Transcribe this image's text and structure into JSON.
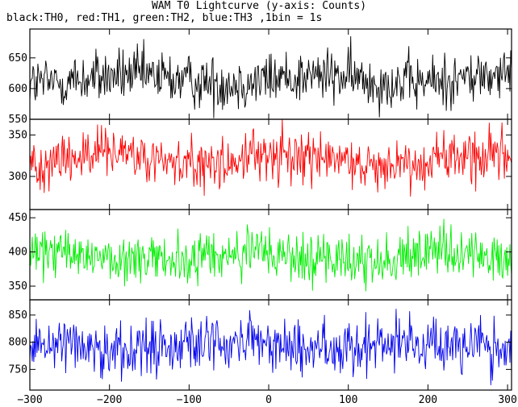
{
  "title": "WAM T0 Lightcurve (y-axis: Counts)",
  "subtitle": "black:TH0, red:TH1, green:TH2, blue:TH3 ,1bin = 1s",
  "chart_data": [
    {
      "type": "line",
      "series_color": "#000000",
      "xlim": [
        -300,
        305
      ],
      "ylim": [
        550,
        697
      ],
      "yticks": [
        550,
        600,
        650
      ],
      "ytick_labels": [
        "550",
        "600",
        "650"
      ],
      "y_mean": 615,
      "y_spread": 22
    },
    {
      "type": "line",
      "series_color": "#ff0000",
      "xlim": [
        -300,
        305
      ],
      "ylim": [
        260,
        369
      ],
      "yticks": [
        300,
        350
      ],
      "ytick_labels": [
        "300",
        "350"
      ],
      "y_mean": 320,
      "y_spread": 16
    },
    {
      "type": "line",
      "series_color": "#00ee00",
      "xlim": [
        -300,
        305
      ],
      "ylim": [
        330,
        462
      ],
      "yticks": [
        350,
        400,
        450
      ],
      "ytick_labels": [
        "350",
        "400",
        "450"
      ],
      "y_mean": 392,
      "y_spread": 19
    },
    {
      "type": "line",
      "series_color": "#0000ee",
      "xlim": [
        -300,
        305
      ],
      "ylim": [
        712,
        878
      ],
      "yticks": [
        750,
        800,
        850
      ],
      "ytick_labels": [
        "750",
        "800",
        "850"
      ],
      "y_mean": 795,
      "y_spread": 26
    }
  ],
  "x_axis": {
    "ticks": [
      -300,
      -200,
      -100,
      0,
      100,
      200,
      300
    ],
    "tick_labels": [
      "−300",
      "−200",
      "−100",
      "0",
      "100",
      "200",
      "300"
    ]
  }
}
